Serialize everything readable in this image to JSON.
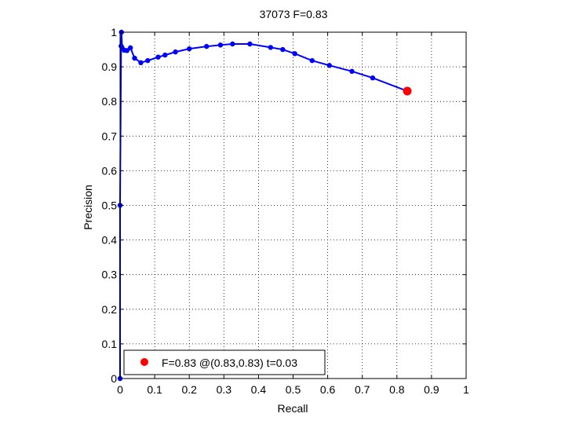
{
  "chart_data": {
    "type": "line",
    "title": "37073 F=0.83",
    "xlabel": "Recall",
    "ylabel": "Precision",
    "xlim": [
      0,
      1
    ],
    "ylim": [
      0,
      1
    ],
    "xticks": [
      "0",
      "0.1",
      "0.2",
      "0.3",
      "0.4",
      "0.5",
      "0.6",
      "0.7",
      "0.8",
      "0.9",
      "1"
    ],
    "yticks": [
      "0",
      "0.1",
      "0.2",
      "0.3",
      "0.4",
      "0.5",
      "0.6",
      "0.7",
      "0.8",
      "0.9",
      "1"
    ],
    "grid": true,
    "legend_position": "bottom-left",
    "series": [
      {
        "color": "#0000ff",
        "marker": "dot",
        "points": [
          {
            "x": 0.0,
            "y": 0.0
          },
          {
            "x": 0.0,
            "y": 0.5
          },
          {
            "x": 0.003,
            "y": 0.96
          },
          {
            "x": 0.004,
            "y": 1.0
          },
          {
            "x": 0.006,
            "y": 0.955
          },
          {
            "x": 0.012,
            "y": 0.948
          },
          {
            "x": 0.02,
            "y": 0.947
          },
          {
            "x": 0.03,
            "y": 0.955
          },
          {
            "x": 0.042,
            "y": 0.925
          },
          {
            "x": 0.06,
            "y": 0.912
          },
          {
            "x": 0.08,
            "y": 0.918
          },
          {
            "x": 0.11,
            "y": 0.928
          },
          {
            "x": 0.13,
            "y": 0.934
          },
          {
            "x": 0.16,
            "y": 0.943
          },
          {
            "x": 0.2,
            "y": 0.952
          },
          {
            "x": 0.25,
            "y": 0.959
          },
          {
            "x": 0.29,
            "y": 0.963
          },
          {
            "x": 0.325,
            "y": 0.966
          },
          {
            "x": 0.375,
            "y": 0.966
          },
          {
            "x": 0.435,
            "y": 0.956
          },
          {
            "x": 0.47,
            "y": 0.95
          },
          {
            "x": 0.505,
            "y": 0.938
          },
          {
            "x": 0.555,
            "y": 0.918
          },
          {
            "x": 0.605,
            "y": 0.904
          },
          {
            "x": 0.67,
            "y": 0.887
          },
          {
            "x": 0.73,
            "y": 0.868
          },
          {
            "x": 0.83,
            "y": 0.83
          }
        ]
      }
    ],
    "optimum": {
      "x": 0.83,
      "y": 0.83,
      "color": "#ff0000"
    },
    "legend": {
      "label": "F=0.83 @(0.83,0.83) t=0.03",
      "color": "#ff0000"
    }
  }
}
